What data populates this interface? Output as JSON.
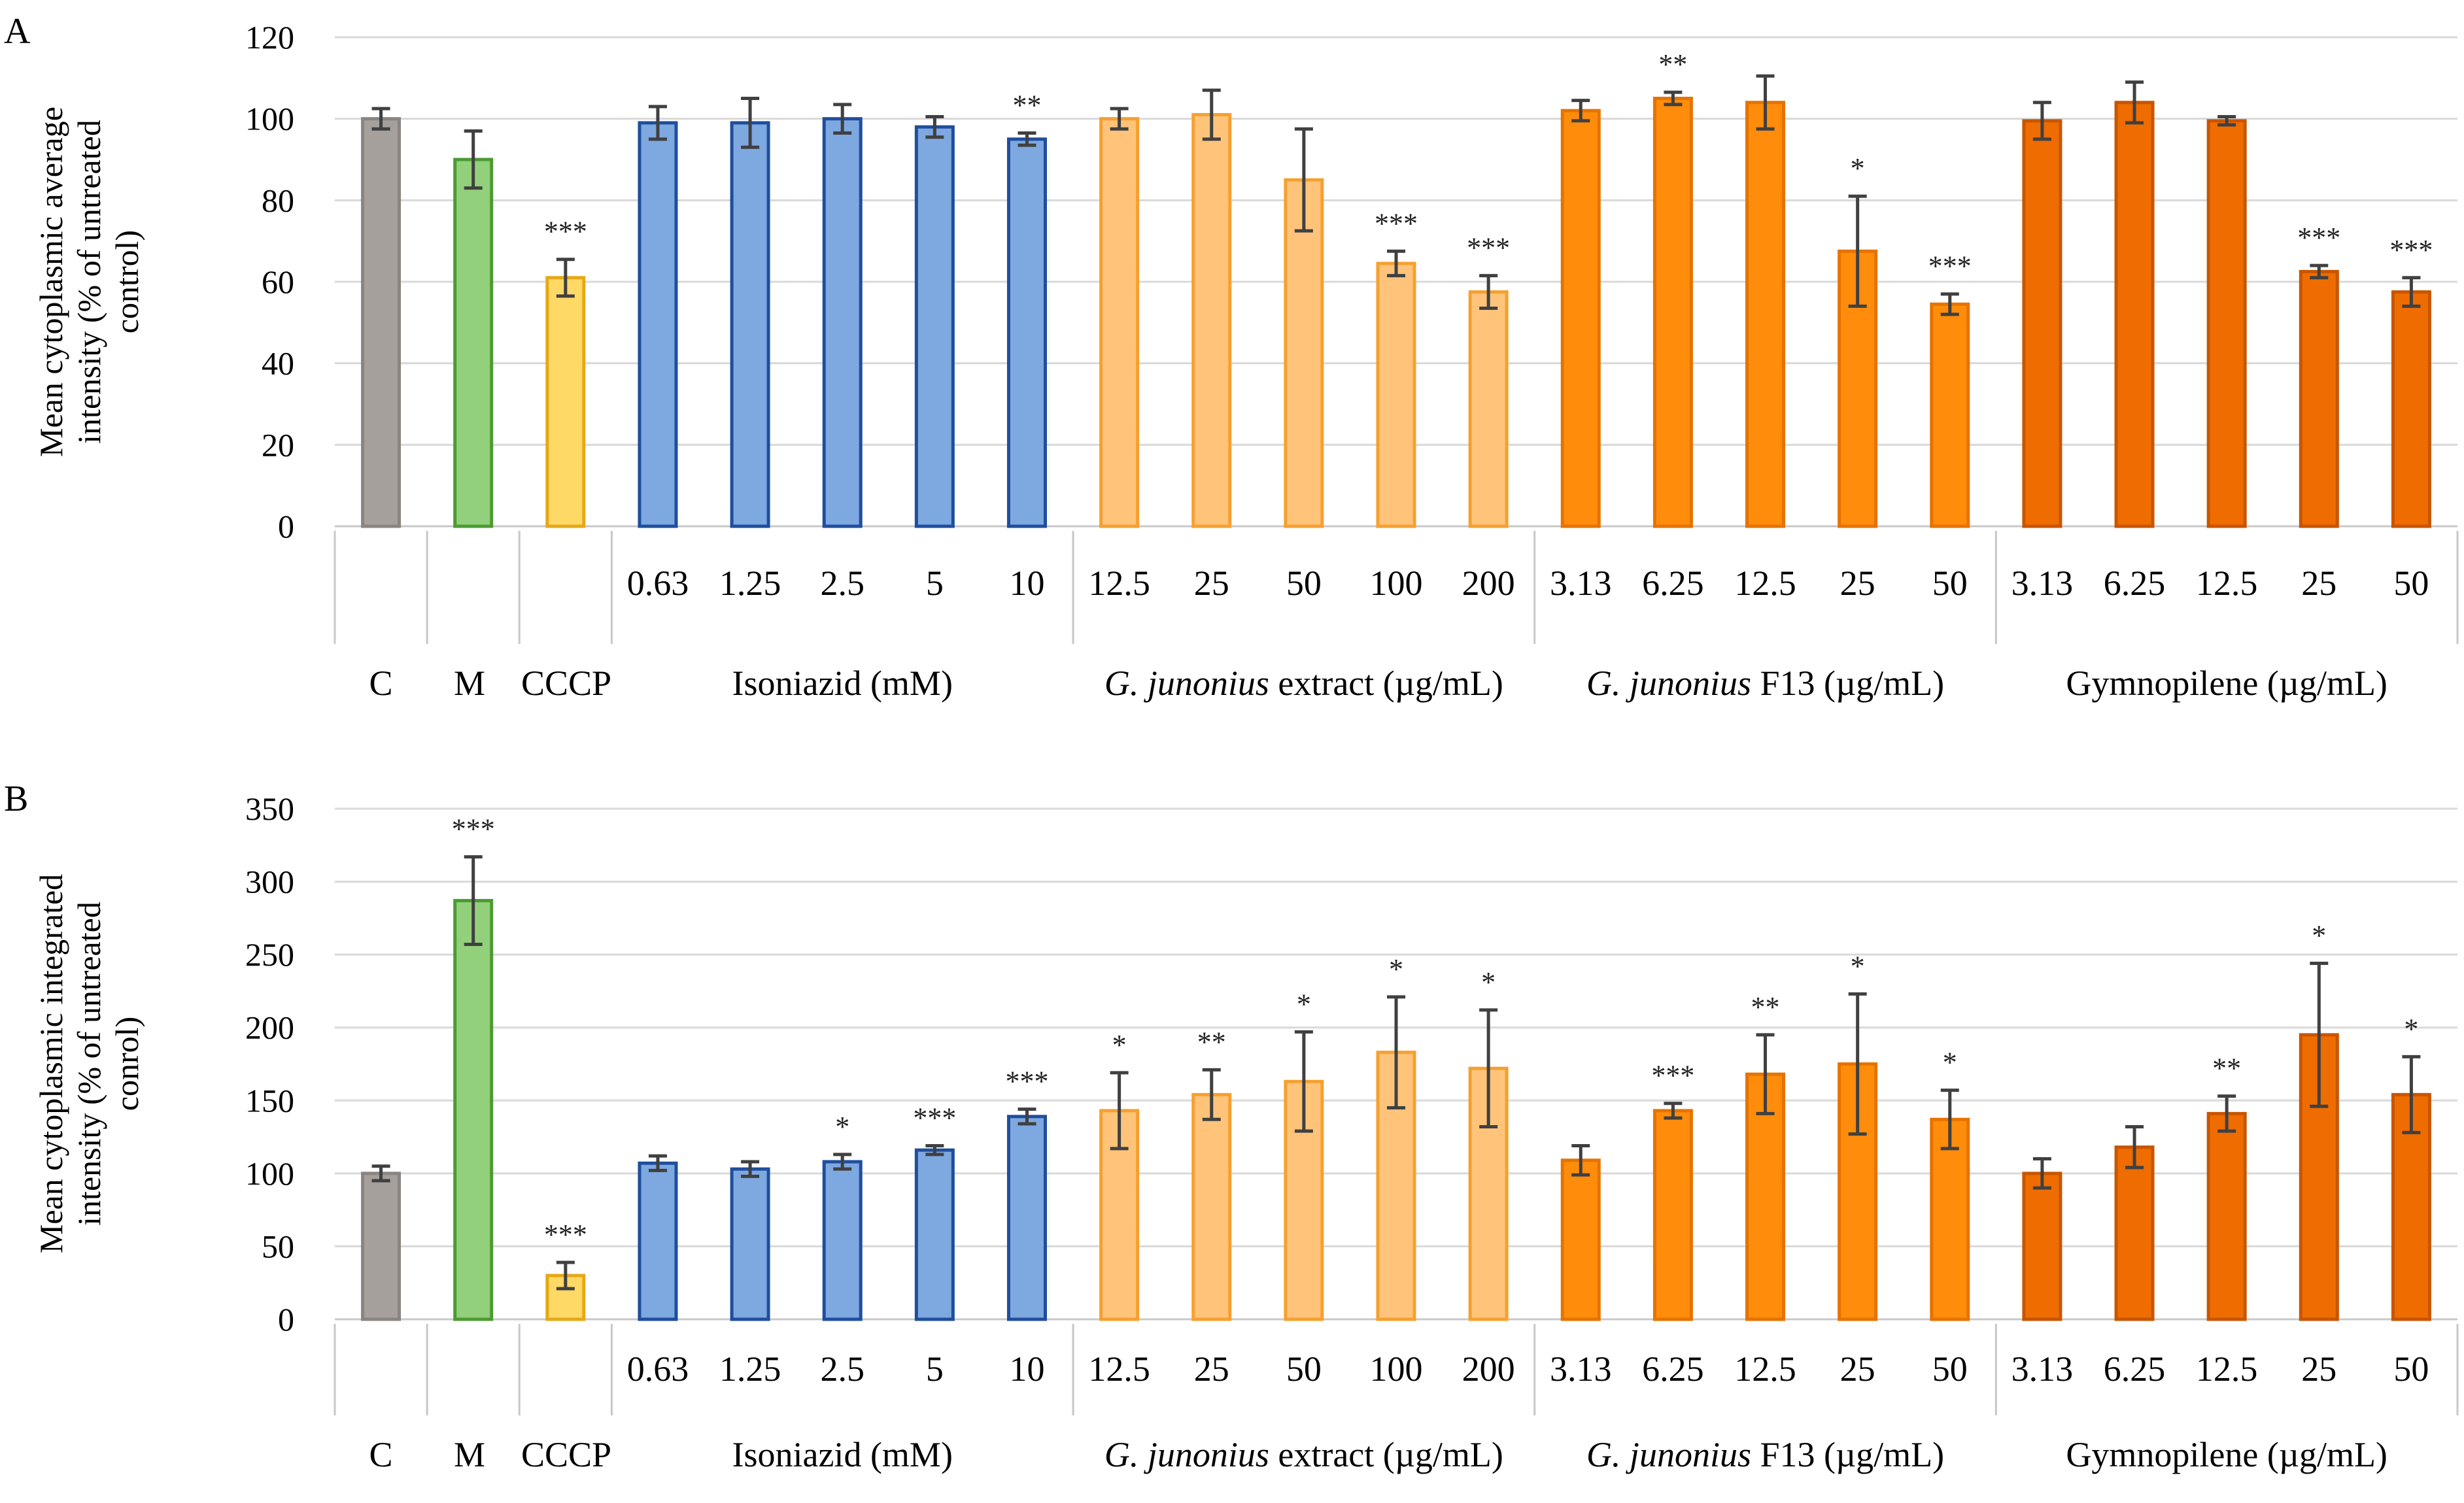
{
  "chart_data": [
    {
      "panel": "A",
      "type": "bar",
      "ylabel": "Mean cytoplasmic average intensity (% of untreated control)",
      "ylabel_lines": [
        "Mean cytoplasmic average",
        "intensity (% of untreated",
        "control)"
      ],
      "ylim": [
        0,
        120
      ],
      "yticks": [
        0,
        20,
        40,
        60,
        80,
        100,
        120
      ],
      "grid": true,
      "groups": [
        {
          "label": "C",
          "italic_prefix": "",
          "rest": "C",
          "color": "#a5a09c",
          "stroke": "#8a8580",
          "bars": [
            {
              "category": "",
              "value": 100,
              "error": 2.5,
              "sig": ""
            }
          ]
        },
        {
          "label": "M",
          "italic_prefix": "",
          "rest": "M",
          "color": "#92d07c",
          "stroke": "#4d9a33",
          "bars": [
            {
              "category": "",
              "value": 90,
              "error": 7,
              "sig": ""
            }
          ]
        },
        {
          "label": "CCCP",
          "italic_prefix": "",
          "rest": "CCCP",
          "color": "#ffd966",
          "stroke": "#e6a817",
          "bars": [
            {
              "category": "",
              "value": 61,
              "error": 4.5,
              "sig": "***"
            }
          ]
        },
        {
          "label": "Isoniazid (mM)",
          "italic_prefix": "",
          "rest": "Isoniazid  (mM)",
          "color": "#7ea8e0",
          "stroke": "#1f4e9c",
          "bars": [
            {
              "category": "0.63",
              "value": 99,
              "error": 4,
              "sig": ""
            },
            {
              "category": "1.25",
              "value": 99,
              "error": 6,
              "sig": ""
            },
            {
              "category": "2.5",
              "value": 100,
              "error": 3.5,
              "sig": ""
            },
            {
              "category": "5",
              "value": 98,
              "error": 2.5,
              "sig": ""
            },
            {
              "category": "10",
              "value": 95,
              "error": 1.5,
              "sig": "**"
            }
          ]
        },
        {
          "label": "G. junonius extract (µg/mL)",
          "italic_prefix": "G. junonius",
          "rest": " extract (µg/mL)",
          "color": "#ffc47a",
          "stroke": "#f5a030",
          "bars": [
            {
              "category": "12.5",
              "value": 100,
              "error": 2.5,
              "sig": ""
            },
            {
              "category": "25",
              "value": 101,
              "error": 6,
              "sig": ""
            },
            {
              "category": "50",
              "value": 85,
              "error": 12.5,
              "sig": ""
            },
            {
              "category": "100",
              "value": 64.5,
              "error": 3,
              "sig": "***"
            },
            {
              "category": "200",
              "value": 57.5,
              "error": 4,
              "sig": "***"
            }
          ]
        },
        {
          "label": "G. junonius F13 (µg/mL)",
          "italic_prefix": "G. junonius",
          "rest": " F13 (µg/mL)",
          "color": "#ff8c0a",
          "stroke": "#e67300",
          "bars": [
            {
              "category": "3.13",
              "value": 102,
              "error": 2.5,
              "sig": ""
            },
            {
              "category": "6.25",
              "value": 105,
              "error": 1.5,
              "sig": "**"
            },
            {
              "category": "12.5",
              "value": 104,
              "error": 6.5,
              "sig": ""
            },
            {
              "category": "25",
              "value": 67.5,
              "error": 13.5,
              "sig": "*"
            },
            {
              "category": "50",
              "value": 54.5,
              "error": 2.5,
              "sig": "***"
            }
          ]
        },
        {
          "label": "Gymnopilene (µg/mL)",
          "italic_prefix": "",
          "rest": "Gymnopilene  (µg/mL)",
          "color": "#ef6c00",
          "stroke": "#c85500",
          "bars": [
            {
              "category": "3.13",
              "value": 99.5,
              "error": 4.5,
              "sig": ""
            },
            {
              "category": "6.25",
              "value": 104,
              "error": 5,
              "sig": ""
            },
            {
              "category": "12.5",
              "value": 99.5,
              "error": 1,
              "sig": ""
            },
            {
              "category": "25",
              "value": 62.5,
              "error": 1.5,
              "sig": "***"
            },
            {
              "category": "50",
              "value": 57.5,
              "error": 3.5,
              "sig": "***"
            }
          ]
        }
      ]
    },
    {
      "panel": "B",
      "type": "bar",
      "ylabel": "Mean cytoplasmic integrated intensity (% of untreated conrol)",
      "ylabel_lines": [
        "Mean cytoplasmic integrated",
        "intensity (% of untreated",
        "conrol)"
      ],
      "ylim": [
        0,
        350
      ],
      "yticks": [
        0,
        50,
        100,
        150,
        200,
        250,
        300,
        350
      ],
      "grid": true,
      "groups": [
        {
          "label": "C",
          "italic_prefix": "",
          "rest": "C",
          "color": "#a5a09c",
          "stroke": "#8a8580",
          "bars": [
            {
              "category": "",
              "value": 100,
              "error": 5,
              "sig": ""
            }
          ]
        },
        {
          "label": "M",
          "italic_prefix": "",
          "rest": "M",
          "color": "#92d07c",
          "stroke": "#4d9a33",
          "bars": [
            {
              "category": "",
              "value": 287,
              "error": 30,
              "sig": "***"
            }
          ]
        },
        {
          "label": "CCCP",
          "italic_prefix": "",
          "rest": "CCCP",
          "color": "#ffd966",
          "stroke": "#e6a817",
          "bars": [
            {
              "category": "",
              "value": 30,
              "error": 9,
              "sig": "***"
            }
          ]
        },
        {
          "label": "Isoniazid (mM)",
          "italic_prefix": "",
          "rest": "Isoniazid  (mM)",
          "color": "#7ea8e0",
          "stroke": "#1f4e9c",
          "bars": [
            {
              "category": "0.63",
              "value": 107,
              "error": 5,
              "sig": ""
            },
            {
              "category": "1.25",
              "value": 103,
              "error": 5,
              "sig": ""
            },
            {
              "category": "2.5",
              "value": 108,
              "error": 5,
              "sig": "*"
            },
            {
              "category": "5",
              "value": 116,
              "error": 3,
              "sig": "***"
            },
            {
              "category": "10",
              "value": 139,
              "error": 5,
              "sig": "***"
            }
          ]
        },
        {
          "label": "G. junonius extract (µg/mL)",
          "italic_prefix": "G. junonius",
          "rest": " extract (µg/mL)",
          "color": "#ffc47a",
          "stroke": "#f5a030",
          "bars": [
            {
              "category": "12.5",
              "value": 143,
              "error": 26,
              "sig": "*"
            },
            {
              "category": "25",
              "value": 154,
              "error": 17,
              "sig": "**"
            },
            {
              "category": "50",
              "value": 163,
              "error": 34,
              "sig": "*"
            },
            {
              "category": "100",
              "value": 183,
              "error": 38,
              "sig": "*"
            },
            {
              "category": "200",
              "value": 172,
              "error": 40,
              "sig": "*"
            }
          ]
        },
        {
          "label": "G. junonius F13 (µg/mL)",
          "italic_prefix": "G. junonius",
          "rest": " F13 (µg/mL)",
          "color": "#ff8c0a",
          "stroke": "#e67300",
          "bars": [
            {
              "category": "3.13",
              "value": 109,
              "error": 10,
              "sig": ""
            },
            {
              "category": "6.25",
              "value": 143,
              "error": 5,
              "sig": "***"
            },
            {
              "category": "12.5",
              "value": 168,
              "error": 27,
              "sig": "**"
            },
            {
              "category": "25",
              "value": 175,
              "error": 48,
              "sig": "*"
            },
            {
              "category": "50",
              "value": 137,
              "error": 20,
              "sig": "*"
            }
          ]
        },
        {
          "label": "Gymnopilene (µg/mL)",
          "italic_prefix": "",
          "rest": "Gymnopilene  (µg/mL)",
          "color": "#ef6c00",
          "stroke": "#c85500",
          "bars": [
            {
              "category": "3.13",
              "value": 100,
              "error": 10,
              "sig": ""
            },
            {
              "category": "6.25",
              "value": 118,
              "error": 14,
              "sig": ""
            },
            {
              "category": "12.5",
              "value": 141,
              "error": 12,
              "sig": "**"
            },
            {
              "category": "25",
              "value": 195,
              "error": 49,
              "sig": "*"
            },
            {
              "category": "50",
              "value": 154,
              "error": 26,
              "sig": "*"
            }
          ]
        }
      ]
    }
  ]
}
